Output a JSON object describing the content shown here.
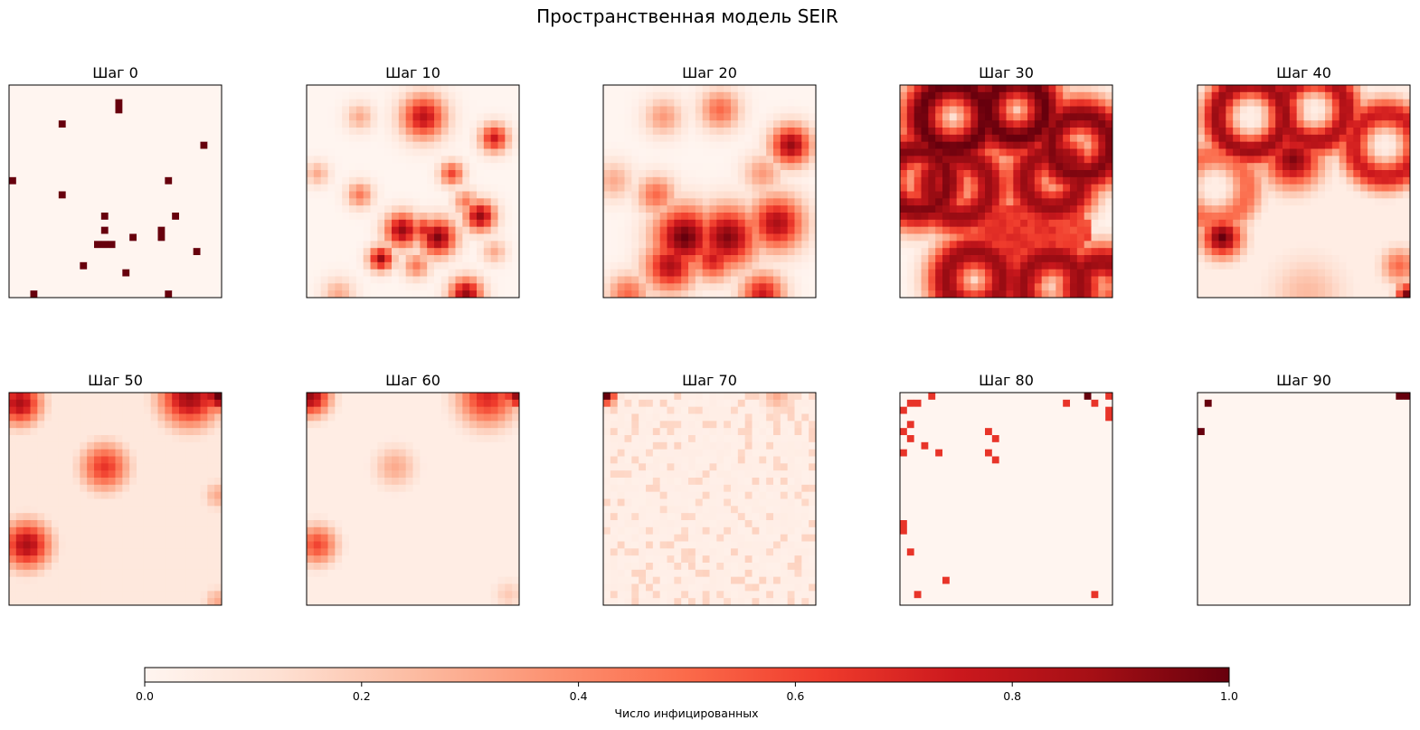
{
  "chart_data": {
    "type": "heatmap",
    "title": "Пространственная модель SEIR",
    "grid_size": 30,
    "value_range": [
      0,
      1
    ],
    "colormap": "Reds",
    "colorbar": {
      "label": "Число инфицированных",
      "ticks": [
        "0.0",
        "0.2",
        "0.4",
        "0.6",
        "0.8",
        "1.0"
      ],
      "placement": "bottom"
    },
    "panels": [
      {
        "title": "Шаг 0",
        "sparse": true,
        "base": 0.0,
        "cells": [
          [
            15,
            2,
            1
          ],
          [
            15,
            3,
            1
          ],
          [
            7,
            5,
            1
          ],
          [
            27,
            8,
            1
          ],
          [
            0,
            13,
            1
          ],
          [
            22,
            13,
            1
          ],
          [
            7,
            15,
            1
          ],
          [
            13,
            18,
            1
          ],
          [
            23,
            18,
            1
          ],
          [
            21,
            20,
            1
          ],
          [
            17,
            21,
            1
          ],
          [
            13,
            20,
            1
          ],
          [
            21,
            21,
            1
          ],
          [
            12,
            22,
            1
          ],
          [
            13,
            22,
            1
          ],
          [
            14,
            22,
            1
          ],
          [
            26,
            23,
            1
          ],
          [
            10,
            25,
            1
          ],
          [
            16,
            26,
            1
          ],
          [
            3,
            29,
            1
          ],
          [
            22,
            29,
            1
          ]
        ]
      },
      {
        "title": "Шаг 10",
        "blobs": [
          [
            16,
            4,
            2.2,
            0.8
          ],
          [
            7,
            4,
            1.4,
            0.3
          ],
          [
            16,
            1,
            1.1,
            0.15
          ],
          [
            26,
            7,
            1.4,
            0.75
          ],
          [
            20,
            12,
            1.2,
            0.6
          ],
          [
            1,
            12,
            1.2,
            0.3
          ],
          [
            7,
            15,
            1.3,
            0.45
          ],
          [
            22,
            16,
            1.2,
            0.45
          ],
          [
            24,
            18,
            1.5,
            0.9
          ],
          [
            13,
            20,
            1.7,
            0.9
          ],
          [
            18,
            21,
            1.8,
            0.95
          ],
          [
            16,
            20,
            1.4,
            0.7
          ],
          [
            10,
            24,
            1.2,
            0.9
          ],
          [
            15,
            25,
            1.3,
            0.45
          ],
          [
            26,
            23,
            1.2,
            0.3
          ],
          [
            4,
            29,
            1.6,
            0.3
          ],
          [
            22,
            29,
            1.6,
            0.9
          ]
        ]
      },
      {
        "title": "Шаг 20",
        "blobs": [
          [
            8,
            4,
            1.9,
            0.35
          ],
          [
            16,
            3,
            2.0,
            0.5
          ],
          [
            26,
            8,
            2.0,
            0.9
          ],
          [
            1,
            13,
            1.9,
            0.3
          ],
          [
            7,
            15,
            1.9,
            0.5
          ],
          [
            22,
            12,
            1.9,
            0.35
          ],
          [
            11,
            21,
            3.0,
            1.0
          ],
          [
            17,
            21,
            3.0,
            0.95
          ],
          [
            24,
            19,
            2.7,
            0.85
          ],
          [
            9,
            25,
            2.5,
            0.85
          ],
          [
            15,
            24,
            2.1,
            0.75
          ],
          [
            3,
            29,
            2.0,
            0.5
          ],
          [
            22,
            29,
            2.1,
            0.75
          ]
        ]
      },
      {
        "title": "Шаг 30",
        "rings": [
          [
            7,
            4,
            4.5,
            2.2,
            1.0
          ],
          [
            16,
            3,
            4.0,
            2.2,
            1.0
          ],
          [
            25,
            8,
            4.2,
            2.1,
            0.95
          ],
          [
            2,
            13,
            4.3,
            2.1,
            0.95
          ],
          [
            8,
            14,
            4.2,
            2.1,
            0.9
          ],
          [
            21,
            13,
            3.9,
            2.1,
            0.9
          ],
          [
            10,
            27,
            4.0,
            2.1,
            0.9
          ],
          [
            21,
            28,
            4.2,
            2.1,
            0.9
          ],
          [
            28,
            28,
            3.5,
            2.0,
            0.9
          ]
        ],
        "fills": [
          [
            16,
            22,
            6.0,
            0.7
          ],
          [
            23,
            20,
            3.5,
            0.65
          ],
          [
            12,
            21,
            4.0,
            0.6
          ]
        ]
      },
      {
        "title": "Шаг 40",
        "base": 0.05,
        "rings": [
          [
            7,
            4,
            4.8,
            1.6,
            0.9
          ],
          [
            16,
            3,
            4.5,
            1.6,
            0.85
          ],
          [
            26,
            8,
            4.5,
            1.6,
            0.75
          ],
          [
            2,
            14,
            4.6,
            1.6,
            0.5
          ]
        ],
        "blobs": [
          [
            13,
            10,
            2.8,
            0.95
          ],
          [
            3,
            21,
            2.0,
            1.0
          ],
          [
            28,
            25,
            1.8,
            0.5
          ],
          [
            15,
            29,
            4.0,
            0.25
          ],
          [
            29,
            29,
            1.0,
            0.95
          ]
        ]
      },
      {
        "title": "Шаг 50",
        "base": 0.08,
        "blobs": [
          [
            1,
            1,
            2.2,
            0.85
          ],
          [
            25,
            0,
            3.0,
            0.9
          ],
          [
            29,
            0,
            1.5,
            1.0
          ],
          [
            13,
            10,
            2.4,
            0.65
          ],
          [
            2,
            21,
            2.4,
            0.85
          ],
          [
            29,
            14,
            1.5,
            0.3
          ],
          [
            29,
            29,
            1.5,
            0.3
          ]
        ]
      },
      {
        "title": "Шаг 60",
        "base": 0.05,
        "blobs": [
          [
            0,
            0,
            2.0,
            0.9
          ],
          [
            25,
            0,
            3.0,
            0.7
          ],
          [
            29,
            0,
            1.2,
            0.9
          ],
          [
            12,
            10,
            2.2,
            0.3
          ],
          [
            1,
            21,
            2.0,
            0.6
          ],
          [
            28,
            28,
            1.6,
            0.2
          ]
        ]
      },
      {
        "title": "Шаг 70",
        "base": 0.03,
        "noise": 0.08,
        "blobs": [
          [
            0,
            0,
            0.9,
            1.0
          ],
          [
            24,
            0,
            1.5,
            0.3
          ]
        ]
      },
      {
        "title": "Шаг 80",
        "sparse": true,
        "base": 0.0,
        "cells": [
          [
            1,
            1,
            0.65
          ],
          [
            2,
            1,
            0.65
          ],
          [
            4,
            0,
            0.65
          ],
          [
            23,
            1,
            0.65
          ],
          [
            27,
            1,
            0.65
          ],
          [
            29,
            0,
            0.65
          ],
          [
            26,
            0,
            1.0
          ],
          [
            29,
            2,
            0.65
          ],
          [
            29,
            3,
            0.65
          ],
          [
            0,
            2,
            0.65
          ],
          [
            1,
            4,
            0.65
          ],
          [
            0,
            5,
            0.65
          ],
          [
            1,
            6,
            0.65
          ],
          [
            3,
            7,
            0.65
          ],
          [
            5,
            8,
            0.65
          ],
          [
            0,
            8,
            0.65
          ],
          [
            12,
            5,
            0.65
          ],
          [
            13,
            6,
            0.65
          ],
          [
            12,
            8,
            0.65
          ],
          [
            13,
            9,
            0.65
          ],
          [
            0,
            18,
            0.65
          ],
          [
            0,
            19,
            0.65
          ],
          [
            1,
            22,
            0.65
          ],
          [
            6,
            26,
            0.65
          ],
          [
            2,
            28,
            0.65
          ],
          [
            27,
            28,
            0.65
          ]
        ]
      },
      {
        "title": "Шаг 90",
        "sparse": true,
        "base": 0.0,
        "cells": [
          [
            1,
            1,
            1
          ],
          [
            0,
            5,
            1
          ],
          [
            28,
            0,
            1
          ],
          [
            29,
            0,
            1
          ]
        ]
      }
    ]
  }
}
